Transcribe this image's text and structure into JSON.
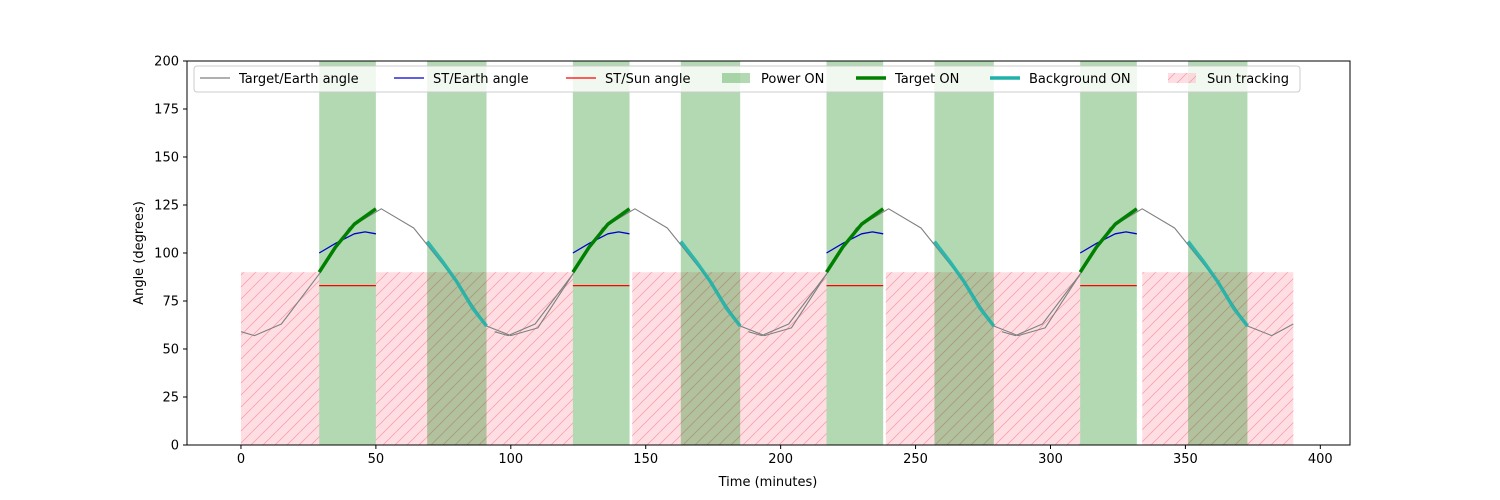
{
  "chart_data": {
    "type": "line",
    "title": "",
    "xlabel": "Time (minutes)",
    "ylabel": "Angle (degrees)",
    "xlim": [
      -20,
      411
    ],
    "ylim": [
      0,
      200
    ],
    "x_ticks": [
      0,
      50,
      100,
      150,
      200,
      250,
      300,
      350,
      400
    ],
    "y_ticks": [
      0,
      25,
      50,
      75,
      100,
      125,
      150,
      175,
      200
    ],
    "grid": false,
    "legend_position": "top",
    "orbit_period": 94,
    "orbit_count": 4,
    "series": [
      {
        "name": "Target/Earth angle",
        "color": "#808080",
        "kind": "line",
        "points": [
          [
            0,
            59
          ],
          [
            5,
            57
          ],
          [
            15,
            63
          ],
          [
            29,
            89
          ],
          [
            40,
            113
          ],
          [
            52,
            123
          ],
          [
            64,
            113
          ],
          [
            80,
            85
          ],
          [
            91,
            62
          ],
          [
            100,
            57
          ],
          [
            110,
            61
          ],
          [
            123,
            89
          ]
        ]
      },
      {
        "name": "ST/Earth angle",
        "color": "#0000cc",
        "kind": "line",
        "points": [
          [
            29,
            100
          ],
          [
            35,
            105
          ],
          [
            42,
            110
          ],
          [
            46,
            111
          ],
          [
            50,
            110
          ]
        ]
      },
      {
        "name": "ST/Sun angle",
        "color": "#ff0000",
        "kind": "line",
        "points": [
          [
            29,
            83
          ],
          [
            50,
            83
          ]
        ]
      },
      {
        "name": "Power ON",
        "color": "#008000",
        "kind": "band",
        "intervals": [
          [
            29,
            50
          ],
          [
            69,
            91
          ]
        ]
      },
      {
        "name": "Target ON",
        "color": "#008000",
        "kind": "thick-line",
        "points": [
          [
            29,
            90
          ],
          [
            35,
            103
          ],
          [
            42,
            115
          ],
          [
            50,
            123
          ]
        ]
      },
      {
        "name": "Background ON",
        "color": "#20b2aa",
        "kind": "thick-line",
        "points": [
          [
            69,
            106
          ],
          [
            75,
            95
          ],
          [
            80,
            85
          ],
          [
            86,
            71
          ],
          [
            91,
            62
          ]
        ]
      },
      {
        "name": "Sun tracking",
        "color": "#ffb6c1",
        "kind": "hatched-band",
        "height": 90,
        "intervals": [
          [
            0,
            29
          ],
          [
            50,
            123
          ],
          [
            145,
            217
          ],
          [
            239,
            311
          ],
          [
            334,
            390
          ]
        ]
      }
    ]
  }
}
